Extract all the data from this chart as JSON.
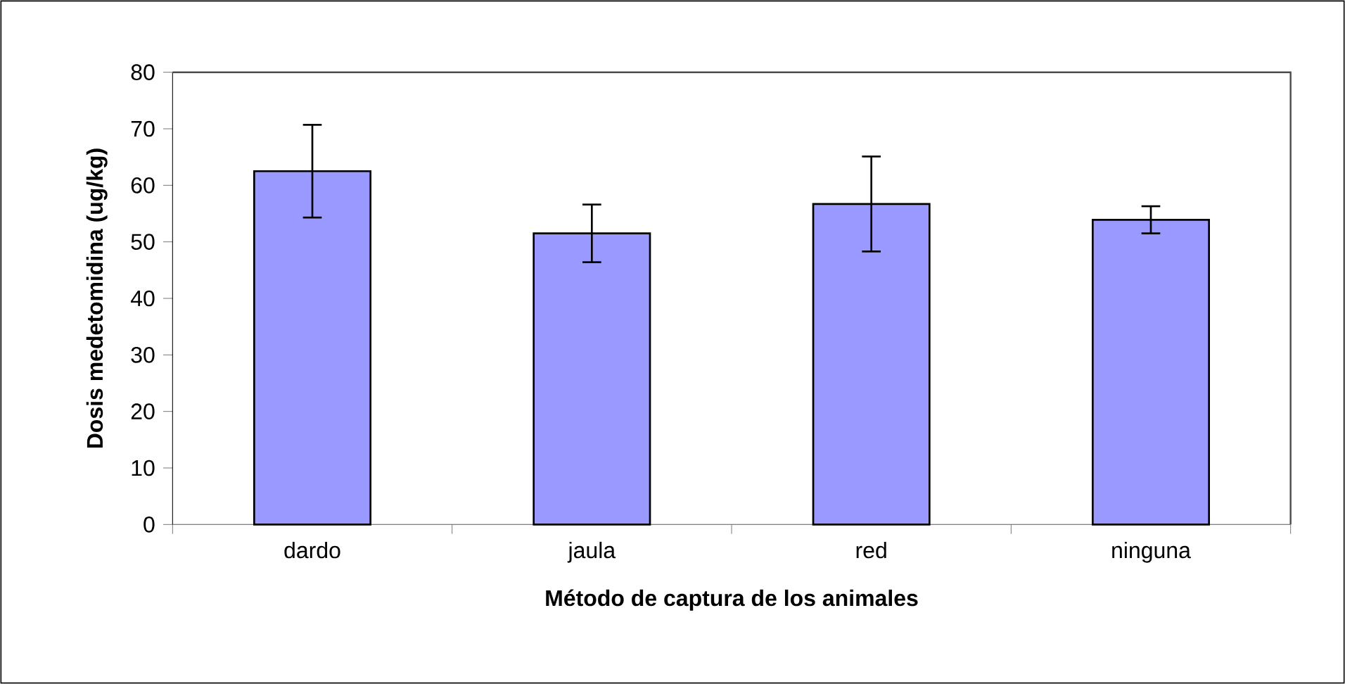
{
  "chart_data": {
    "type": "bar",
    "xlabel": "Método de captura de los animales",
    "ylabel": "Dosis medetomidina (ug/kg)",
    "categories": [
      "dardo",
      "jaula",
      "red",
      "ninguna"
    ],
    "values": [
      62.5,
      51.5,
      56.7,
      53.9
    ],
    "errors": [
      8.2,
      5.1,
      8.4,
      2.4
    ],
    "color": "#9999ff",
    "ylim": [
      0,
      80
    ],
    "yticks": [
      0,
      10,
      20,
      30,
      40,
      50,
      60,
      70,
      80
    ],
    "grid": false
  }
}
